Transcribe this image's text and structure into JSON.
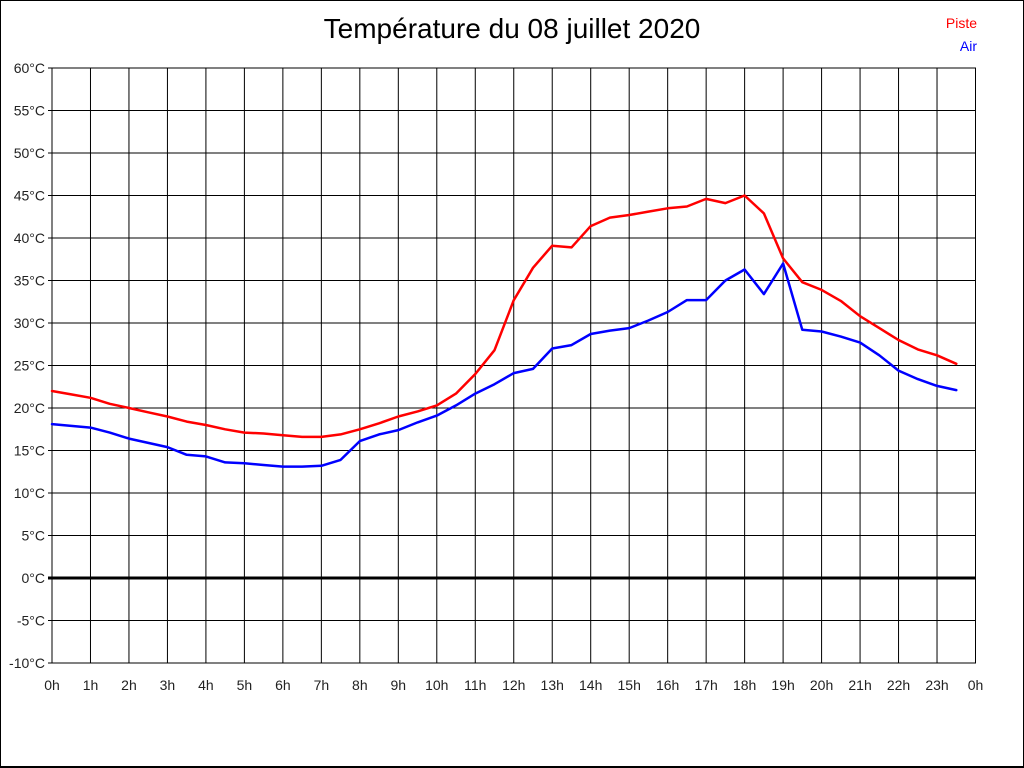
{
  "chart_data": {
    "type": "line",
    "title": "Température du 08 juillet 2020",
    "xlabel": "",
    "ylabel": "",
    "xlim": [
      0,
      24
    ],
    "ylim": [
      -10,
      60
    ],
    "grid": true,
    "zero_line_bold": true,
    "legend_position": "top-right",
    "colors": {
      "grid": "#000000",
      "frame": "#000000",
      "zero_line": "#000000",
      "axis_text": "#222222",
      "title_text": "#000000"
    },
    "y_ticks": [
      {
        "label": "60°C",
        "value": 60
      },
      {
        "label": "55°C",
        "value": 55
      },
      {
        "label": "50°C",
        "value": 50
      },
      {
        "label": "45°C",
        "value": 45
      },
      {
        "label": "40°C",
        "value": 40
      },
      {
        "label": "35°C",
        "value": 35
      },
      {
        "label": "30°C",
        "value": 30
      },
      {
        "label": "25°C",
        "value": 25
      },
      {
        "label": "20°C",
        "value": 20
      },
      {
        "label": "15°C",
        "value": 15
      },
      {
        "label": "10°C",
        "value": 10
      },
      {
        "label": "5°C",
        "value": 5
      },
      {
        "label": "0°C",
        "value": 0
      },
      {
        "label": "-5°C",
        "value": -5
      },
      {
        "label": "-10°C",
        "value": -10
      }
    ],
    "x_ticks": [
      {
        "label": "0h",
        "value": 0
      },
      {
        "label": "1h",
        "value": 1
      },
      {
        "label": "2h",
        "value": 2
      },
      {
        "label": "3h",
        "value": 3
      },
      {
        "label": "4h",
        "value": 4
      },
      {
        "label": "5h",
        "value": 5
      },
      {
        "label": "6h",
        "value": 6
      },
      {
        "label": "7h",
        "value": 7
      },
      {
        "label": "8h",
        "value": 8
      },
      {
        "label": "9h",
        "value": 9
      },
      {
        "label": "10h",
        "value": 10
      },
      {
        "label": "11h",
        "value": 11
      },
      {
        "label": "12h",
        "value": 12
      },
      {
        "label": "13h",
        "value": 13
      },
      {
        "label": "14h",
        "value": 14
      },
      {
        "label": "15h",
        "value": 15
      },
      {
        "label": "16h",
        "value": 16
      },
      {
        "label": "17h",
        "value": 17
      },
      {
        "label": "18h",
        "value": 18
      },
      {
        "label": "19h",
        "value": 19
      },
      {
        "label": "20h",
        "value": 20
      },
      {
        "label": "21h",
        "value": 21
      },
      {
        "label": "22h",
        "value": 22
      },
      {
        "label": "23h",
        "value": 23
      },
      {
        "label": "0h",
        "value": 24
      }
    ],
    "x": [
      0,
      0.5,
      1,
      1.5,
      2,
      2.5,
      3,
      3.5,
      4,
      4.5,
      5,
      5.5,
      6,
      6.5,
      7,
      7.5,
      8,
      8.5,
      9,
      9.5,
      10,
      10.5,
      11,
      11.5,
      12,
      12.5,
      13,
      13.5,
      14,
      14.5,
      15,
      15.5,
      16,
      16.5,
      17,
      17.5,
      18,
      18.5,
      19,
      19.5,
      20,
      20.5,
      21,
      21.5,
      22,
      22.5,
      23,
      23.5
    ],
    "series": [
      {
        "name": "Piste",
        "color": "#ff0000",
        "values": [
          22.0,
          21.6,
          21.2,
          20.5,
          20.0,
          19.5,
          19.0,
          18.4,
          18.0,
          17.5,
          17.1,
          17.0,
          16.8,
          16.6,
          16.6,
          16.9,
          17.5,
          18.2,
          19.0,
          19.6,
          20.3,
          21.7,
          24.0,
          26.8,
          32.7,
          36.5,
          39.1,
          38.9,
          41.4,
          42.4,
          42.7,
          43.1,
          43.5,
          43.7,
          44.6,
          44.1,
          45.0,
          42.9,
          37.6,
          34.8,
          33.9,
          32.6,
          30.8,
          29.4,
          28.0,
          26.9,
          26.2,
          25.2
        ]
      },
      {
        "name": "Air",
        "color": "#0000ff",
        "values": [
          18.1,
          17.9,
          17.7,
          17.1,
          16.4,
          15.9,
          15.4,
          14.5,
          14.3,
          13.6,
          13.5,
          13.3,
          13.1,
          13.1,
          13.2,
          13.9,
          16.1,
          16.9,
          17.4,
          18.3,
          19.1,
          20.3,
          21.7,
          22.8,
          24.1,
          24.6,
          27.0,
          27.4,
          28.7,
          29.1,
          29.4,
          30.3,
          31.3,
          32.7,
          32.7,
          35.0,
          36.3,
          33.4,
          37.0,
          29.2,
          29.0,
          28.4,
          27.7,
          26.2,
          24.4,
          23.4,
          22.6,
          22.1
        ]
      }
    ]
  }
}
